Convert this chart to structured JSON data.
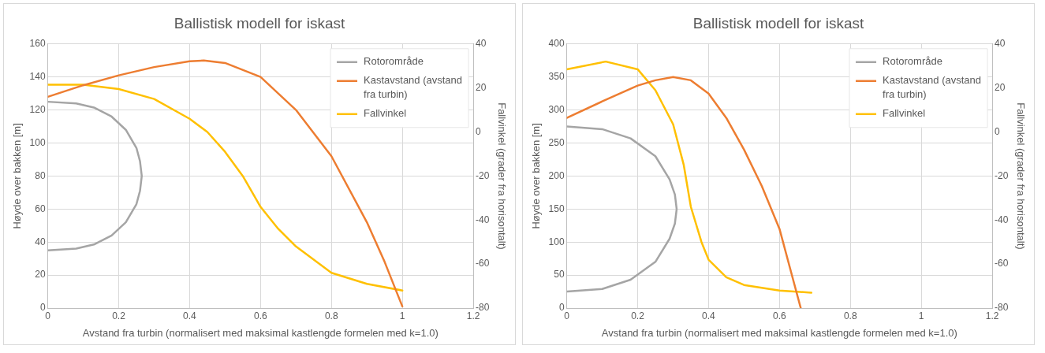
{
  "chart_data": [
    {
      "type": "line",
      "title": "Ballistisk modell for iskast",
      "xlabel": "Avstand fra turbin (normalisert med maksimal kastlengde formelen med k=1.0)",
      "ylabel": "Høyde over bakken [m]",
      "y2label": "Fallvinkel (grader fra horisontalt)",
      "xlim": [
        0,
        1.2
      ],
      "xticks": [
        0,
        0.2,
        0.4,
        0.6,
        0.8,
        1,
        1.2
      ],
      "ylim": [
        0,
        160
      ],
      "yticks": [
        0,
        20,
        40,
        60,
        80,
        100,
        120,
        140,
        160
      ],
      "y2lim": [
        -80,
        40
      ],
      "y2ticks": [
        -80,
        -60,
        -40,
        -20,
        0,
        20,
        40
      ],
      "grid": true,
      "legend": "top right",
      "marker": "none",
      "series": [
        {
          "name": "Rotorområde",
          "color": "#a5a5a5",
          "x": [
            0,
            0.08,
            0.13,
            0.18,
            0.22,
            0.25,
            0.26,
            0.265,
            0.26,
            0.25,
            0.22,
            0.18,
            0.13,
            0.08,
            0
          ],
          "values": [
            125,
            124,
            121.5,
            116,
            108,
            97,
            89,
            80,
            71,
            63,
            52,
            44,
            38.5,
            36,
            35
          ]
        },
        {
          "name": "Kastavstand (avstand fra turbin)",
          "color": "#ed7d31",
          "x": [
            0,
            0.1,
            0.2,
            0.3,
            0.4,
            0.44,
            0.5,
            0.6,
            0.7,
            0.8,
            0.9,
            0.95,
            1
          ],
          "values": [
            128,
            135,
            141,
            146,
            149.5,
            150,
            148.5,
            140,
            120,
            92,
            52,
            28,
            1
          ]
        },
        {
          "name": "Fallvinkel",
          "color": "#ffc000",
          "axis": "y2",
          "x": [
            0,
            0.1,
            0.2,
            0.3,
            0.4,
            0.45,
            0.5,
            0.55,
            0.6,
            0.65,
            0.7,
            0.8,
            0.9,
            1
          ],
          "values": [
            21.5,
            21.5,
            19.5,
            15,
            6,
            0,
            -9,
            -20,
            -34,
            -44,
            -52,
            -64,
            -69,
            -72
          ]
        }
      ]
    },
    {
      "type": "line",
      "title": "Ballistisk modell for iskast",
      "xlabel": "Avstand fra turbin (normalisert med maksimal kastlengde formelen med k=1.0)",
      "ylabel": "Høyde over bakken [m]",
      "y2label": "Fallvinkel (grader fra horisontalt)",
      "xlim": [
        0,
        1.2
      ],
      "xticks": [
        0,
        0.2,
        0.4,
        0.6,
        0.8,
        1,
        1.2
      ],
      "ylim": [
        0,
        400
      ],
      "yticks": [
        0,
        50,
        100,
        150,
        200,
        250,
        300,
        350,
        400
      ],
      "y2lim": [
        -80,
        40
      ],
      "y2ticks": [
        -80,
        -60,
        -40,
        -20,
        0,
        20,
        40
      ],
      "grid": true,
      "legend": "top right",
      "marker": "none",
      "series": [
        {
          "name": "Rotorområde",
          "color": "#a5a5a5",
          "x": [
            0,
            0.1,
            0.18,
            0.25,
            0.29,
            0.305,
            0.31,
            0.305,
            0.29,
            0.25,
            0.18,
            0.1,
            0
          ],
          "values": [
            275,
            271,
            257,
            230,
            195,
            172,
            150,
            128,
            105,
            70,
            43,
            29,
            25
          ]
        },
        {
          "name": "Kastavstand (avstand fra turbin)",
          "color": "#ed7d31",
          "x": [
            0,
            0.1,
            0.2,
            0.25,
            0.3,
            0.35,
            0.4,
            0.45,
            0.5,
            0.55,
            0.6,
            0.63,
            0.66
          ],
          "values": [
            288,
            313,
            337,
            345,
            350,
            345,
            325,
            288,
            240,
            185,
            120,
            60,
            0
          ]
        },
        {
          "name": "Fallvinkel",
          "color": "#ffc000",
          "axis": "y2",
          "x": [
            0,
            0.11,
            0.2,
            0.25,
            0.3,
            0.33,
            0.35,
            0.38,
            0.4,
            0.45,
            0.5,
            0.6,
            0.69
          ],
          "values": [
            28.5,
            32,
            28.5,
            19,
            3.5,
            -15,
            -34,
            -50,
            -58,
            -66,
            -69.5,
            -72,
            -73
          ]
        }
      ]
    }
  ]
}
